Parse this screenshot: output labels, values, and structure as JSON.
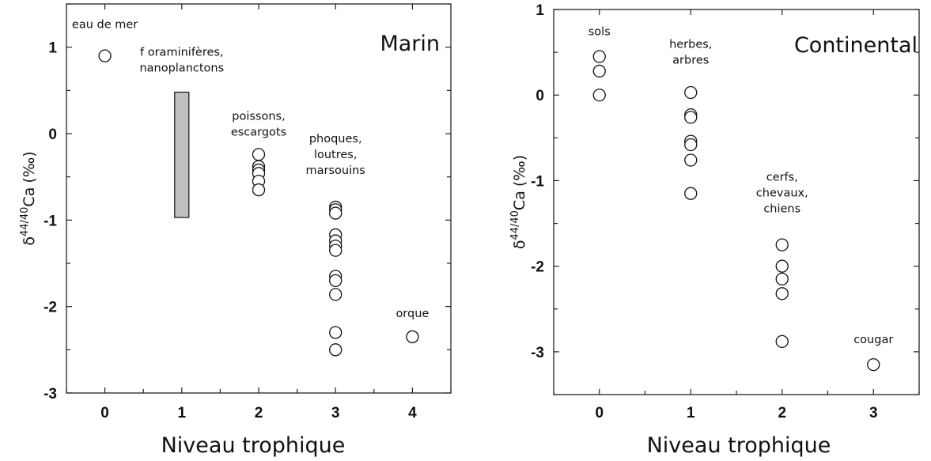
{
  "chart_data": [
    {
      "type": "scatter",
      "title": "Marin",
      "xlabel": "Niveau trophique",
      "ylabel": "δ44/40Ca (‰)",
      "ylabel_parts": {
        "delta": "δ",
        "sup": "44/40",
        "elem": "Ca",
        "unit": "(‰)"
      },
      "xlim": [
        -0.5,
        4.5
      ],
      "ylim": [
        -3,
        1.5
      ],
      "xticks": [
        "0",
        "1",
        "2",
        "3",
        "4"
      ],
      "yticks": [
        "1",
        "0",
        "-1",
        "-2",
        "-3"
      ],
      "points": [
        {
          "x": 0,
          "y": 0.9
        },
        {
          "x": 2,
          "y": -0.24
        },
        {
          "x": 2,
          "y": -0.38
        },
        {
          "x": 2,
          "y": -0.42
        },
        {
          "x": 2,
          "y": -0.46
        },
        {
          "x": 2,
          "y": -0.55
        },
        {
          "x": 2,
          "y": -0.65
        },
        {
          "x": 3,
          "y": -0.85
        },
        {
          "x": 3,
          "y": -0.88
        },
        {
          "x": 3,
          "y": -0.92
        },
        {
          "x": 3,
          "y": -1.17
        },
        {
          "x": 3,
          "y": -1.24
        },
        {
          "x": 3,
          "y": -1.3
        },
        {
          "x": 3,
          "y": -1.35
        },
        {
          "x": 3,
          "y": -1.65
        },
        {
          "x": 3,
          "y": -1.7
        },
        {
          "x": 3,
          "y": -1.86
        },
        {
          "x": 3,
          "y": -2.3
        },
        {
          "x": 3,
          "y": -2.5
        },
        {
          "x": 4,
          "y": -2.35
        }
      ],
      "ranges": [
        {
          "x": 1,
          "y_min": -0.97,
          "y_max": 0.48
        }
      ],
      "annotations": [
        {
          "lines": [
            "eau de mer"
          ],
          "x": 0,
          "y": 1.22
        },
        {
          "lines": [
            "f oraminifères,",
            "nanoplanctons"
          ],
          "x": 1,
          "y": 0.9
        },
        {
          "lines": [
            "poissons,",
            "escargots"
          ],
          "x": 2,
          "y": 0.16
        },
        {
          "lines": [
            "phoques,",
            "loutres,",
            "marsouins"
          ],
          "x": 3,
          "y": -0.1
        },
        {
          "lines": [
            "orque"
          ],
          "x": 4,
          "y": -2.12
        }
      ]
    },
    {
      "type": "scatter",
      "title": "Continental",
      "xlabel": "Niveau trophique",
      "ylabel": "δ44/40Ca (‰)",
      "ylabel_parts": {
        "delta": "δ",
        "sup": "44/40",
        "elem": "Ca",
        "unit": "(‰)"
      },
      "xlim": [
        -0.5,
        3.5
      ],
      "ylim": [
        -3.5,
        1
      ],
      "xticks": [
        "0",
        "1",
        "2",
        "3"
      ],
      "yticks": [
        "1",
        "0",
        "-1",
        "-2",
        "-3"
      ],
      "points": [
        {
          "x": 0,
          "y": 0.45
        },
        {
          "x": 0,
          "y": 0.28
        },
        {
          "x": 0,
          "y": 0.0
        },
        {
          "x": 1,
          "y": 0.03
        },
        {
          "x": 1,
          "y": -0.23
        },
        {
          "x": 1,
          "y": -0.26
        },
        {
          "x": 1,
          "y": -0.54
        },
        {
          "x": 1,
          "y": -0.58
        },
        {
          "x": 1,
          "y": -0.76
        },
        {
          "x": 1,
          "y": -1.15
        },
        {
          "x": 2,
          "y": -1.75
        },
        {
          "x": 2,
          "y": -2.0
        },
        {
          "x": 2,
          "y": -2.15
        },
        {
          "x": 2,
          "y": -2.32
        },
        {
          "x": 2,
          "y": -2.88
        },
        {
          "x": 3,
          "y": -3.15
        }
      ],
      "annotations": [
        {
          "lines": [
            "sols"
          ],
          "x": 0,
          "y": 0.7
        },
        {
          "lines": [
            "herbes,",
            "arbres"
          ],
          "x": 1,
          "y": 0.55
        },
        {
          "lines": [
            "cerfs,",
            "chevaux,",
            "chiens"
          ],
          "x": 2,
          "y": -1.0
        },
        {
          "lines": [
            "cougar"
          ],
          "x": 3,
          "y": -2.9
        }
      ]
    }
  ]
}
